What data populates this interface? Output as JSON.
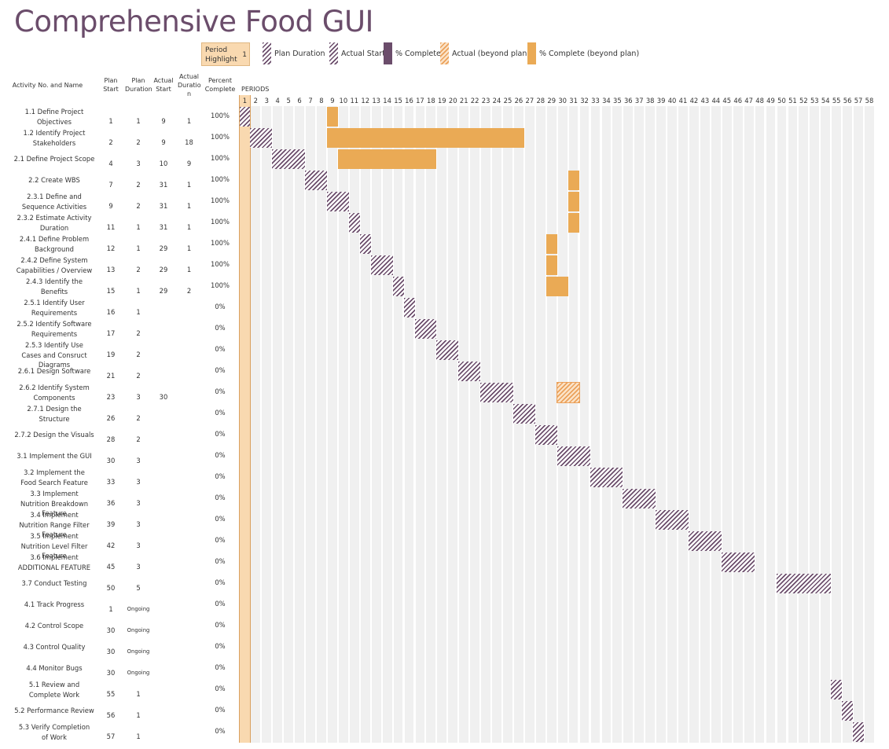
{
  "title": "Comprehensive Food GUI",
  "legend": {
    "period_highlight_label": "Period Highlight",
    "period_highlight_value": "1",
    "items": [
      "Plan Duration",
      "Actual Start",
      "% Complete",
      "Actual (beyond plan)",
      "% Complete (beyond plan)"
    ]
  },
  "headers": {
    "activity": "Activity No. and Name",
    "plan_start": "Plan Start",
    "plan_duration": "Plan Duration",
    "actual_start": "Actual Start",
    "actual_duration": "Actual Duratio n",
    "percent_complete": "Percent Complete",
    "periods": "PERIODS"
  },
  "colors": {
    "plan": "#6b4d6b",
    "complete": "#eaaa55",
    "beyond_hatch": "#eba15a",
    "highlight": "#f9d9b0",
    "title": "#6b4d6b"
  },
  "chart_data": {
    "type": "gantt",
    "title": "Comprehensive Food GUI",
    "periods": 58,
    "highlight_period": 1,
    "tasks": [
      {
        "name": "1.1 Define Project Objectives",
        "plan_start": "1",
        "plan_duration": "1",
        "actual_start": "9",
        "actual_duration": "1",
        "percent": "100%"
      },
      {
        "name": "1.2 Identify Project Stakeholders",
        "plan_start": "2",
        "plan_duration": "2",
        "actual_start": "9",
        "actual_duration": "18",
        "percent": "100%"
      },
      {
        "name": "2.1 Define Project Scope",
        "plan_start": "4",
        "plan_duration": "3",
        "actual_start": "10",
        "actual_duration": "9",
        "percent": "100%"
      },
      {
        "name": "2.2 Create WBS",
        "plan_start": "7",
        "plan_duration": "2",
        "actual_start": "31",
        "actual_duration": "1",
        "percent": "100%"
      },
      {
        "name": "2.3.1 Define and Sequence Activities",
        "plan_start": "9",
        "plan_duration": "2",
        "actual_start": "31",
        "actual_duration": "1",
        "percent": "100%"
      },
      {
        "name": "2.3.2 Estimate Activity Duration",
        "plan_start": "11",
        "plan_duration": "1",
        "actual_start": "31",
        "actual_duration": "1",
        "percent": "100%"
      },
      {
        "name": "2.4.1 Define Problem Background",
        "plan_start": "12",
        "plan_duration": "1",
        "actual_start": "29",
        "actual_duration": "1",
        "percent": "100%"
      },
      {
        "name": "2.4.2 Define System Capabilities / Overview",
        "plan_start": "13",
        "plan_duration": "2",
        "actual_start": "29",
        "actual_duration": "1",
        "percent": "100%"
      },
      {
        "name": "2.4.3 Identify the Benefits",
        "plan_start": "15",
        "plan_duration": "1",
        "actual_start": "29",
        "actual_duration": "2",
        "percent": "100%"
      },
      {
        "name": "2.5.1 Identify User Requirements",
        "plan_start": "16",
        "plan_duration": "1",
        "actual_start": "",
        "actual_duration": "",
        "percent": "0%"
      },
      {
        "name": "2.5.2 Identify Software Requirements",
        "plan_start": "17",
        "plan_duration": "2",
        "actual_start": "",
        "actual_duration": "",
        "percent": "0%"
      },
      {
        "name": "2.5.3 Identify Use Cases and Consruct Diagrams",
        "plan_start": "19",
        "plan_duration": "2",
        "actual_start": "",
        "actual_duration": "",
        "percent": "0%"
      },
      {
        "name": "2.6.1 Design Software",
        "plan_start": "21",
        "plan_duration": "2",
        "actual_start": "",
        "actual_duration": "",
        "percent": "0%"
      },
      {
        "name": "2.6.2 Identify System Components",
        "plan_start": "23",
        "plan_duration": "3",
        "actual_start": "30",
        "actual_duration": "",
        "percent": "0%"
      },
      {
        "name": "2.7.1 Design the Structure",
        "plan_start": "26",
        "plan_duration": "2",
        "actual_start": "",
        "actual_duration": "",
        "percent": "0%"
      },
      {
        "name": "2.7.2 Design the Visuals",
        "plan_start": "28",
        "plan_duration": "2",
        "actual_start": "",
        "actual_duration": "",
        "percent": "0%"
      },
      {
        "name": "3.1 Implement the GUI",
        "plan_start": "30",
        "plan_duration": "3",
        "actual_start": "",
        "actual_duration": "",
        "percent": "0%"
      },
      {
        "name": "3.2 Implement the Food Search Feature",
        "plan_start": "33",
        "plan_duration": "3",
        "actual_start": "",
        "actual_duration": "",
        "percent": "0%"
      },
      {
        "name": "3.3 Implement Nutrition Breakdown Feature",
        "plan_start": "36",
        "plan_duration": "3",
        "actual_start": "",
        "actual_duration": "",
        "percent": "0%"
      },
      {
        "name": "3.4 Implement Nutrition Range Filter Feature",
        "plan_start": "39",
        "plan_duration": "3",
        "actual_start": "",
        "actual_duration": "",
        "percent": "0%"
      },
      {
        "name": "3.5 Implement Nutrition Level Filter Feature",
        "plan_start": "42",
        "plan_duration": "3",
        "actual_start": "",
        "actual_duration": "",
        "percent": "0%"
      },
      {
        "name": "3.6 Implement ADDITIONAL FEATURE",
        "plan_start": "45",
        "plan_duration": "3",
        "actual_start": "",
        "actual_duration": "",
        "percent": "0%"
      },
      {
        "name": "3.7 Conduct Testing",
        "plan_start": "50",
        "plan_duration": "5",
        "actual_start": "",
        "actual_duration": "",
        "percent": "0%"
      },
      {
        "name": "4.1 Track Progress",
        "plan_start": "1",
        "plan_duration": "Ongoing",
        "actual_start": "",
        "actual_duration": "",
        "percent": "0%"
      },
      {
        "name": "4.2 Control Scope",
        "plan_start": "30",
        "plan_duration": "Ongoing",
        "actual_start": "",
        "actual_duration": "",
        "percent": "0%"
      },
      {
        "name": "4.3 Control Quality",
        "plan_start": "30",
        "plan_duration": "Ongoing",
        "actual_start": "",
        "actual_duration": "",
        "percent": "0%"
      },
      {
        "name": "4.4 Monitor Bugs",
        "plan_start": "30",
        "plan_duration": "Ongoing",
        "actual_start": "",
        "actual_duration": "",
        "percent": "0%"
      },
      {
        "name": "5.1 Review and Complete Work",
        "plan_start": "55",
        "plan_duration": "1",
        "actual_start": "",
        "actual_duration": "",
        "percent": "0%"
      },
      {
        "name": "5.2 Performance Review",
        "plan_start": "56",
        "plan_duration": "1",
        "actual_start": "",
        "actual_duration": "",
        "percent": "0%"
      },
      {
        "name": "5.3 Verify Completion of Work",
        "plan_start": "57",
        "plan_duration": "1",
        "actual_start": "",
        "actual_duration": "",
        "percent": "0%"
      }
    ]
  }
}
